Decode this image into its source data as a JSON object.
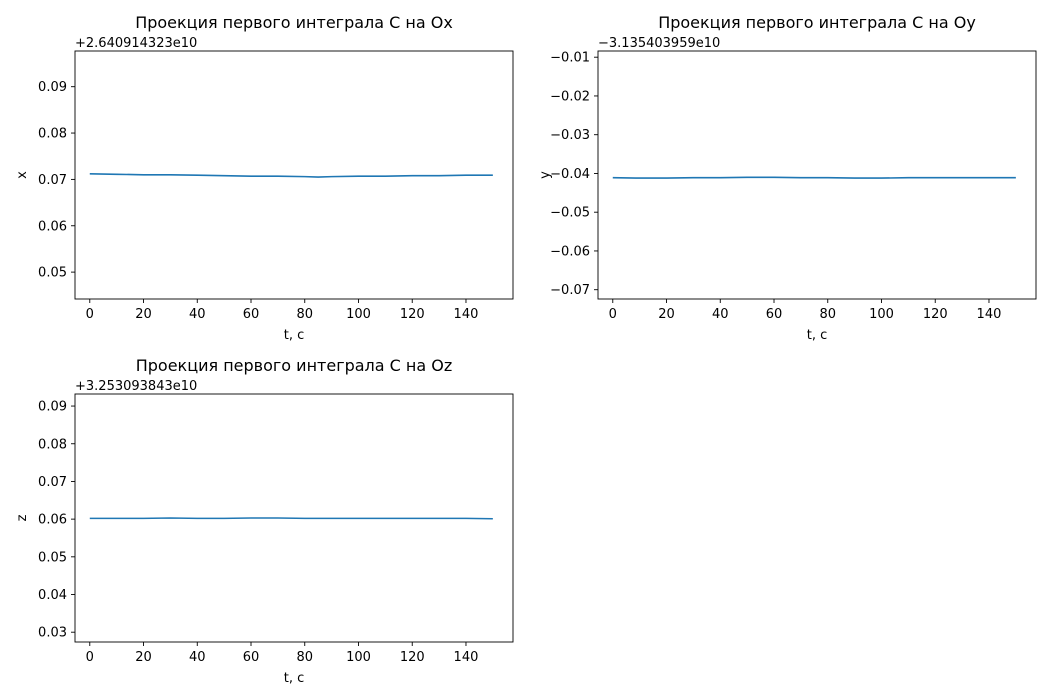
{
  "chart_data": [
    {
      "type": "line",
      "title": "Проекция первого интеграла C на Ox",
      "xlabel": "t, c",
      "ylabel": "x",
      "offset_text": "+2.640914323e10",
      "xlim": [
        -5.5,
        157.5
      ],
      "ylim": [
        0.0442,
        0.0977
      ],
      "xticks": [
        0,
        20,
        40,
        60,
        80,
        100,
        120,
        140
      ],
      "xtick_labels": [
        "0",
        "20",
        "40",
        "60",
        "80",
        "100",
        "120",
        "140"
      ],
      "yticks": [
        0.05,
        0.06,
        0.07,
        0.08,
        0.09
      ],
      "ytick_labels": [
        "0.05",
        "0.06",
        "0.07",
        "0.08",
        "0.09"
      ],
      "grid": false,
      "series": [
        {
          "color": "#1f77b4",
          "x": [
            0,
            10,
            20,
            30,
            40,
            50,
            60,
            70,
            80,
            85,
            90,
            100,
            110,
            120,
            130,
            140,
            150
          ],
          "y": [
            0.0712,
            0.0711,
            0.071,
            0.071,
            0.0709,
            0.0708,
            0.0707,
            0.0707,
            0.0706,
            0.0705,
            0.0706,
            0.0707,
            0.0707,
            0.0708,
            0.0708,
            0.0709,
            0.0709
          ]
        }
      ]
    },
    {
      "type": "line",
      "title": "Проекция первого интеграла C на Oy",
      "xlabel": "t, c",
      "ylabel": "y",
      "offset_text": "−3.135403959e10",
      "xlim": [
        -5.5,
        157.5
      ],
      "ylim": [
        -0.0724,
        -0.0084
      ],
      "xticks": [
        0,
        20,
        40,
        60,
        80,
        100,
        120,
        140
      ],
      "xtick_labels": [
        "0",
        "20",
        "40",
        "60",
        "80",
        "100",
        "120",
        "140"
      ],
      "yticks": [
        -0.01,
        -0.02,
        -0.03,
        -0.04,
        -0.05,
        -0.06,
        -0.07
      ],
      "ytick_labels": [
        "−0.01",
        "−0.02",
        "−0.03",
        "−0.04",
        "−0.05",
        "−0.06",
        "−0.07"
      ],
      "grid": false,
      "series": [
        {
          "color": "#1f77b4",
          "x": [
            0,
            10,
            20,
            30,
            40,
            50,
            60,
            70,
            80,
            90,
            100,
            110,
            120,
            130,
            140,
            150
          ],
          "y": [
            -0.0411,
            -0.0412,
            -0.0412,
            -0.0411,
            -0.0411,
            -0.041,
            -0.041,
            -0.0411,
            -0.0411,
            -0.0412,
            -0.0412,
            -0.0411,
            -0.0411,
            -0.0411,
            -0.0411,
            -0.0411
          ]
        }
      ]
    },
    {
      "type": "line",
      "title": "Проекция первого интеграла C на Oz",
      "xlabel": "t, c",
      "ylabel": "z",
      "offset_text": "+3.253093843e10",
      "xlim": [
        -5.5,
        157.5
      ],
      "ylim": [
        0.0274,
        0.0932
      ],
      "xticks": [
        0,
        20,
        40,
        60,
        80,
        100,
        120,
        140
      ],
      "xtick_labels": [
        "0",
        "20",
        "40",
        "60",
        "80",
        "100",
        "120",
        "140"
      ],
      "yticks": [
        0.03,
        0.04,
        0.05,
        0.06,
        0.07,
        0.08,
        0.09
      ],
      "ytick_labels": [
        "0.03",
        "0.04",
        "0.05",
        "0.06",
        "0.07",
        "0.08",
        "0.09"
      ],
      "grid": false,
      "series": [
        {
          "color": "#1f77b4",
          "x": [
            0,
            10,
            20,
            30,
            40,
            50,
            60,
            70,
            80,
            90,
            100,
            110,
            120,
            130,
            140,
            150
          ],
          "y": [
            0.0602,
            0.0602,
            0.0602,
            0.0603,
            0.0602,
            0.0602,
            0.0603,
            0.0603,
            0.0602,
            0.0602,
            0.0602,
            0.0602,
            0.0602,
            0.0602,
            0.0602,
            0.0601
          ]
        }
      ]
    }
  ]
}
